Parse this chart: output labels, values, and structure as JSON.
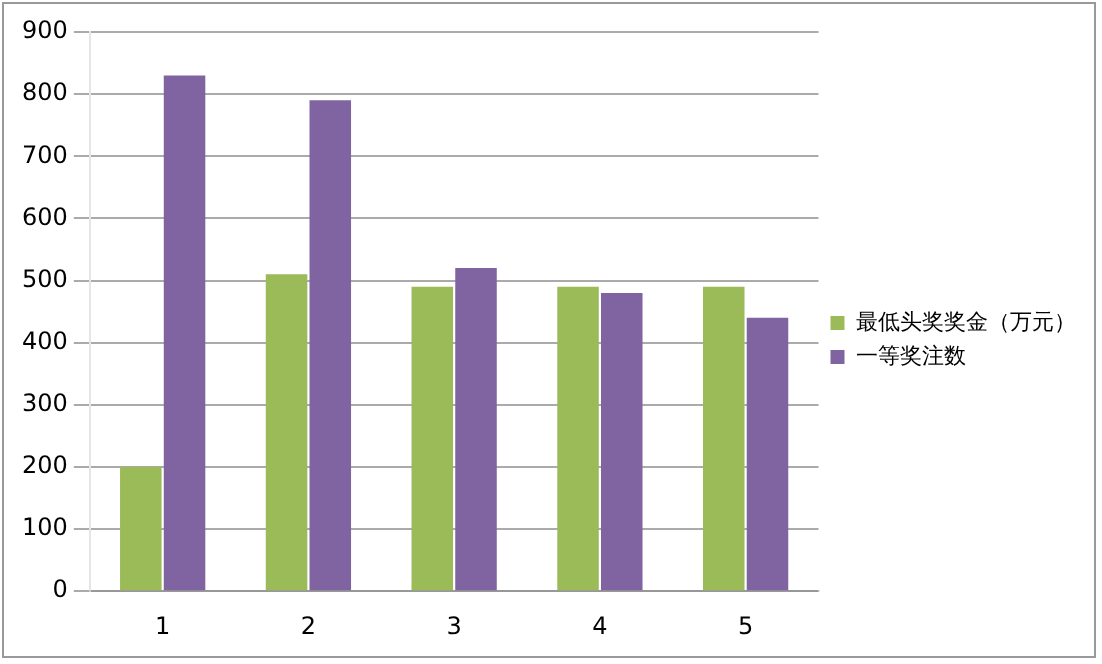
{
  "chart_data": {
    "type": "bar",
    "categories": [
      "1",
      "2",
      "3",
      "4",
      "5"
    ],
    "series": [
      {
        "name": "最低头奖奖金（万元）",
        "color": "#9bbb59",
        "values": [
          200,
          510,
          490,
          490,
          490
        ]
      },
      {
        "name": "一等奖注数",
        "color": "#8064a2",
        "values": [
          830,
          790,
          520,
          480,
          440
        ]
      }
    ],
    "ylim": [
      0,
      900
    ],
    "yticks": [
      0,
      100,
      200,
      300,
      400,
      500,
      600,
      700,
      800,
      900
    ],
    "grid": "y",
    "legend": "right"
  }
}
